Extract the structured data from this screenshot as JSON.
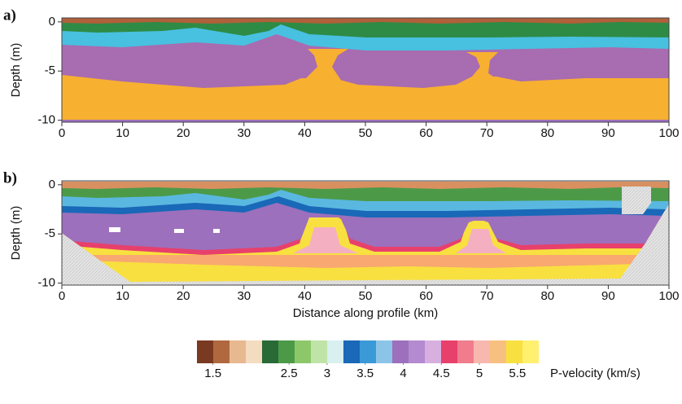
{
  "chart_data": [
    {
      "type": "heatmap",
      "panel_label": "a)",
      "ylabel": "Depth (m)",
      "xlim": [
        0,
        100
      ],
      "xticks": [
        0,
        10,
        20,
        30,
        40,
        50,
        60,
        70,
        80,
        90,
        100
      ],
      "ylim": [
        -10.2,
        0.4
      ],
      "yticks": [
        -10,
        -5,
        0
      ]
    },
    {
      "type": "heatmap",
      "panel_label": "b)",
      "ylabel": "Depth (m)",
      "xlabel": "Distance along profile (km)",
      "xlim": [
        0,
        100
      ],
      "xticks": [
        0,
        10,
        20,
        30,
        40,
        50,
        60,
        70,
        80,
        90,
        100
      ],
      "ylim": [
        -10.2,
        0.4
      ],
      "yticks": [
        -10,
        -5,
        0
      ]
    },
    {
      "type": "colorbar",
      "label": "P-velocity (km/s)",
      "xlim": [
        1.29,
        5.78
      ],
      "xticks": [
        1.5,
        2.5,
        3,
        3.5,
        4,
        4.5,
        5,
        5.5
      ],
      "colors": [
        "#7a3a22",
        "#b0683e",
        "#e8b890",
        "#f4dcc0",
        "#2a6a36",
        "#4c9a48",
        "#8cc86a",
        "#c0e4a8",
        "#d8f0f0",
        "#1a68b8",
        "#3a9ad8",
        "#8cc4e8",
        "#9c70bc",
        "#b48ad0",
        "#d8b0e0",
        "#e8406c",
        "#f07c8c",
        "#f8b8b0",
        "#f8c080",
        "#f8e040",
        "#fff070"
      ]
    }
  ]
}
